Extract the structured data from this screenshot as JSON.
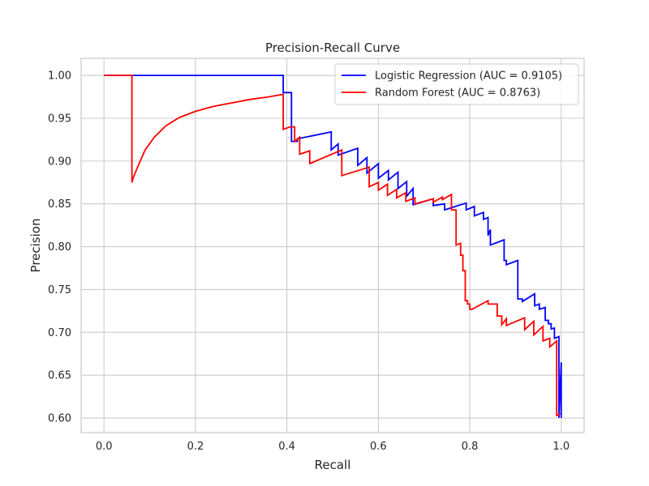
{
  "chart_data": {
    "type": "line",
    "title": "Precision-Recall Curve",
    "xlabel": "Recall",
    "ylabel": "Precision",
    "xlim": [
      -0.05,
      1.05
    ],
    "ylim": [
      0.583,
      1.02
    ],
    "xticks": [
      0.0,
      0.2,
      0.4,
      0.6,
      0.8,
      1.0
    ],
    "xtick_labels": [
      "0.0",
      "0.2",
      "0.4",
      "0.6",
      "0.8",
      "1.0"
    ],
    "yticks": [
      0.6,
      0.65,
      0.7,
      0.75,
      0.8,
      0.85,
      0.9,
      0.95,
      1.0
    ],
    "ytick_labels": [
      "0.60",
      "0.65",
      "0.70",
      "0.75",
      "0.80",
      "0.85",
      "0.90",
      "0.95",
      "1.00"
    ],
    "grid": true,
    "legend_position": "upper right",
    "series": [
      {
        "name": "Logistic Regression (AUC = 0.9105)",
        "color": "#0000ff",
        "x": [
          0.0,
          0.392,
          0.392,
          0.41,
          0.41,
          0.423,
          0.423,
          0.497,
          0.497,
          0.512,
          0.512,
          0.555,
          0.555,
          0.575,
          0.575,
          0.6,
          0.6,
          0.622,
          0.622,
          0.643,
          0.643,
          0.662,
          0.662,
          0.676,
          0.676,
          0.72,
          0.72,
          0.745,
          0.745,
          0.792,
          0.792,
          0.81,
          0.81,
          0.83,
          0.83,
          0.84,
          0.84,
          0.845,
          0.845,
          0.875,
          0.875,
          0.88,
          0.88,
          0.905,
          0.905,
          0.915,
          0.915,
          0.942,
          0.942,
          0.952,
          0.952,
          0.965,
          0.965,
          0.972,
          0.972,
          0.978,
          0.978,
          0.985,
          0.985,
          0.995,
          0.995,
          1.0,
          1.0
        ],
        "y": [
          1.0,
          1.0,
          0.98,
          0.98,
          0.923,
          0.923,
          0.926,
          0.934,
          0.913,
          0.92,
          0.907,
          0.915,
          0.895,
          0.904,
          0.886,
          0.897,
          0.88,
          0.889,
          0.878,
          0.887,
          0.868,
          0.876,
          0.859,
          0.868,
          0.849,
          0.856,
          0.848,
          0.85,
          0.843,
          0.851,
          0.843,
          0.847,
          0.836,
          0.84,
          0.832,
          0.834,
          0.813,
          0.82,
          0.802,
          0.808,
          0.784,
          0.784,
          0.779,
          0.784,
          0.739,
          0.739,
          0.736,
          0.745,
          0.731,
          0.733,
          0.727,
          0.729,
          0.714,
          0.714,
          0.71,
          0.71,
          0.704,
          0.705,
          0.693,
          0.695,
          0.6,
          0.665,
          0.6
        ]
      },
      {
        "name": "Random Forest (AUC = 0.8763)",
        "color": "#ff0000",
        "x": [
          0.0,
          0.061,
          0.061,
          0.065,
          0.075,
          0.09,
          0.11,
          0.135,
          0.165,
          0.2,
          0.24,
          0.28,
          0.32,
          0.36,
          0.392,
          0.392,
          0.407,
          0.407,
          0.417,
          0.417,
          0.428,
          0.428,
          0.45,
          0.45,
          0.52,
          0.52,
          0.58,
          0.58,
          0.6,
          0.6,
          0.62,
          0.62,
          0.64,
          0.64,
          0.66,
          0.66,
          0.68,
          0.68,
          0.72,
          0.72,
          0.74,
          0.74,
          0.76,
          0.76,
          0.77,
          0.77,
          0.78,
          0.78,
          0.785,
          0.785,
          0.79,
          0.79,
          0.795,
          0.795,
          0.8,
          0.8,
          0.805,
          0.805,
          0.84,
          0.84,
          0.86,
          0.86,
          0.87,
          0.87,
          0.88,
          0.88,
          0.92,
          0.92,
          0.94,
          0.94,
          0.96,
          0.96,
          0.975,
          0.975,
          0.99,
          0.99,
          0.998
        ],
        "y": [
          1.0,
          1.0,
          0.875,
          0.882,
          0.895,
          0.913,
          0.928,
          0.941,
          0.951,
          0.958,
          0.964,
          0.968,
          0.972,
          0.975,
          0.978,
          0.937,
          0.94,
          0.94,
          0.94,
          0.923,
          0.928,
          0.908,
          0.912,
          0.897,
          0.913,
          0.883,
          0.893,
          0.87,
          0.875,
          0.866,
          0.873,
          0.86,
          0.867,
          0.857,
          0.863,
          0.853,
          0.857,
          0.85,
          0.856,
          0.852,
          0.858,
          0.855,
          0.861,
          0.843,
          0.843,
          0.802,
          0.804,
          0.79,
          0.79,
          0.772,
          0.772,
          0.737,
          0.737,
          0.733,
          0.733,
          0.727,
          0.727,
          0.727,
          0.737,
          0.733,
          0.733,
          0.719,
          0.719,
          0.709,
          0.716,
          0.708,
          0.717,
          0.703,
          0.713,
          0.697,
          0.707,
          0.69,
          0.693,
          0.683,
          0.69,
          0.603,
          0.605
        ]
      }
    ]
  }
}
